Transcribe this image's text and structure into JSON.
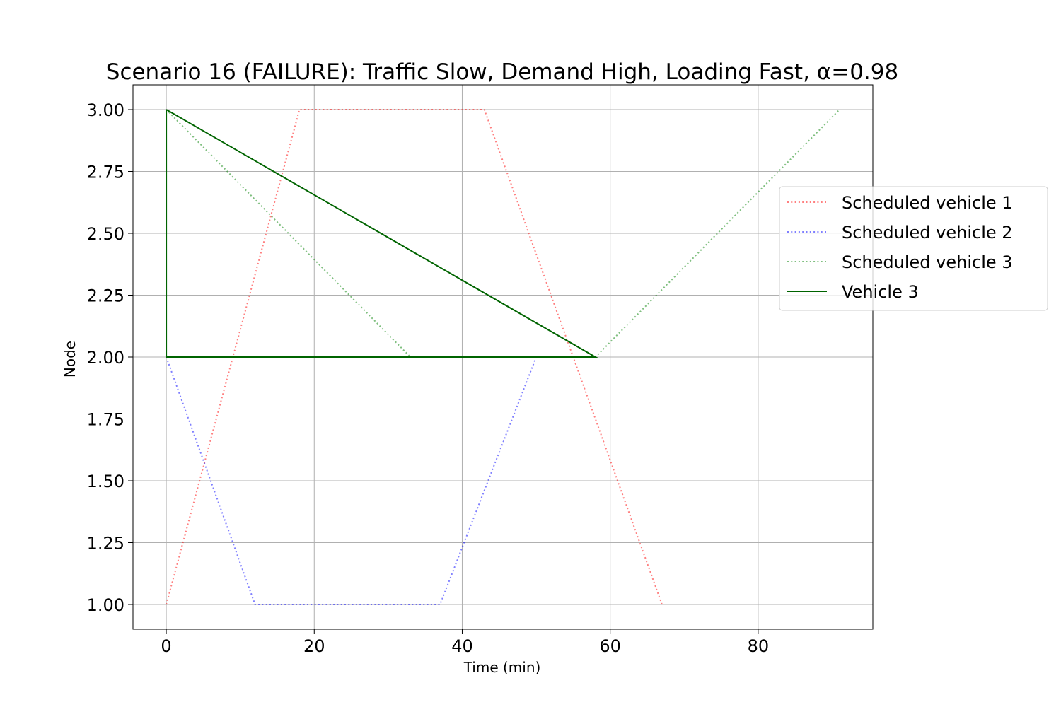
{
  "chart_data": {
    "type": "line",
    "title": "Scenario 16 (FAILURE): Traffic Slow, Demand High, Loading Fast, α=0.98",
    "xlabel": "Time (min)",
    "ylabel": "Node",
    "xlim": [
      -4.5,
      95.5
    ],
    "ylim": [
      0.9,
      3.1
    ],
    "xticks": [
      0,
      20,
      40,
      60,
      80
    ],
    "xtick_labels": [
      "0",
      "20",
      "40",
      "60",
      "80"
    ],
    "yticks": [
      1.0,
      1.25,
      1.5,
      1.75,
      2.0,
      2.25,
      2.5,
      2.75,
      3.0
    ],
    "ytick_labels": [
      "1.00",
      "1.25",
      "1.50",
      "1.75",
      "2.00",
      "2.25",
      "2.50",
      "2.75",
      "3.00"
    ],
    "grid": true,
    "legend_position": "right, outside upper area",
    "series": [
      {
        "name": "Scheduled vehicle 1",
        "color": "#ff0000",
        "style": "dotted",
        "points": [
          [
            0,
            1
          ],
          [
            18,
            3
          ],
          [
            43,
            3
          ],
          [
            67,
            1
          ]
        ]
      },
      {
        "name": "Scheduled vehicle 2",
        "color": "#0000ff",
        "style": "dotted",
        "points": [
          [
            0,
            2
          ],
          [
            12,
            1
          ],
          [
            37,
            1
          ],
          [
            50,
            2
          ]
        ]
      },
      {
        "name": "Scheduled vehicle 3",
        "color": "#008000",
        "style": "dotted",
        "points": [
          [
            0,
            3
          ],
          [
            33,
            2
          ],
          [
            58,
            2
          ],
          [
            91,
            3
          ]
        ]
      },
      {
        "name": "Vehicle 3",
        "color": "#006400",
        "style": "solid",
        "points": [
          [
            0,
            3
          ],
          [
            0,
            2
          ],
          [
            58,
            2
          ],
          [
            0,
            3
          ]
        ]
      }
    ]
  }
}
